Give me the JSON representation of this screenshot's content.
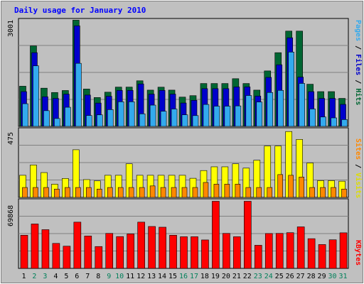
{
  "chart_data": [
    {
      "type": "bar",
      "title": "Daily usage for January 2010",
      "categories": [
        "1",
        "2",
        "3",
        "4",
        "5",
        "6",
        "7",
        "8",
        "9",
        "10",
        "11",
        "12",
        "13",
        "14",
        "15",
        "16",
        "17",
        "18",
        "19",
        "20",
        "21",
        "22",
        "23",
        "24",
        "25",
        "26",
        "27",
        "28",
        "29",
        "30",
        "31"
      ],
      "weekend_days": [
        "2",
        "3",
        "9",
        "10",
        "16",
        "17",
        "23",
        "24",
        "30",
        "31"
      ],
      "ymax_label": "3001",
      "ylim": [
        0,
        3001
      ],
      "series": [
        {
          "name": "Hits",
          "color": "#006633",
          "values": [
            1132,
            2268,
            1077,
            955,
            1011,
            2993,
            1052,
            813,
            964,
            1107,
            1107,
            1285,
            1022,
            1105,
            1022,
            825,
            866,
            1208,
            1208,
            1208,
            1344,
            1208,
            1022,
            1563,
            2077,
            2685,
            2685,
            1188,
            980,
            980,
            789
          ]
        },
        {
          "name": "Files",
          "color": "#0000cc",
          "values": [
            980,
            2077,
            835,
            788,
            909,
            2834,
            883,
            657,
            849,
            1014,
            1014,
            1196,
            909,
            1014,
            909,
            659,
            734,
            1063,
            1063,
            1063,
            1112,
            1114,
            855,
            1381,
            1736,
            2497,
            1389,
            980,
            789,
            789,
            620
          ]
        },
        {
          "name": "Pages",
          "color": "#33aaee",
          "values": [
            639,
            1706,
            443,
            222,
            539,
            1777,
            307,
            325,
            474,
            694,
            694,
            354,
            599,
            427,
            490,
            326,
            304,
            618,
            570,
            570,
            577,
            870,
            687,
            955,
            1015,
            2094,
            1211,
            491,
            265,
            240,
            192
          ]
        }
      ],
      "legend": [
        "Pages",
        "Files",
        "Hits"
      ]
    },
    {
      "type": "bar",
      "ymax_label": "475",
      "ylim": [
        0,
        475
      ],
      "series": [
        {
          "name": "Visits",
          "color": "#ffff00",
          "values": [
            154,
            226,
            173,
            92,
            132,
            332,
            124,
            115,
            154,
            154,
            234,
            154,
            154,
            154,
            154,
            154,
            133,
            187,
            213,
            213,
            234,
            204,
            259,
            358,
            358,
            459,
            404,
            240,
            117,
            117,
            113
          ]
        },
        {
          "name": "Sites",
          "color": "#ff8800",
          "values": [
            69,
            69,
            69,
            58,
            69,
            69,
            69,
            58,
            69,
            69,
            69,
            69,
            80,
            69,
            69,
            69,
            69,
            104,
            92,
            92,
            92,
            69,
            69,
            69,
            159,
            154,
            142,
            69,
            69,
            69,
            58
          ]
        }
      ],
      "legend": [
        "Sites",
        "Visits"
      ]
    },
    {
      "type": "bar",
      "ymax_label": "69868",
      "ylim": [
        0,
        69868
      ],
      "series": [
        {
          "name": "KBytes",
          "color": "#ff0000",
          "values": [
            33990,
            45530,
            39700,
            25620,
            22760,
            47400,
            33200,
            22400,
            35870,
            32590,
            35330,
            47400,
            42960,
            42230,
            33990,
            32450,
            32450,
            29170,
            68800,
            35870,
            32450,
            68800,
            23700,
            35730,
            35870,
            36600,
            42570,
            30450,
            24450,
            29320,
            36470
          ]
        }
      ],
      "legend": [
        "KBytes"
      ]
    }
  ]
}
